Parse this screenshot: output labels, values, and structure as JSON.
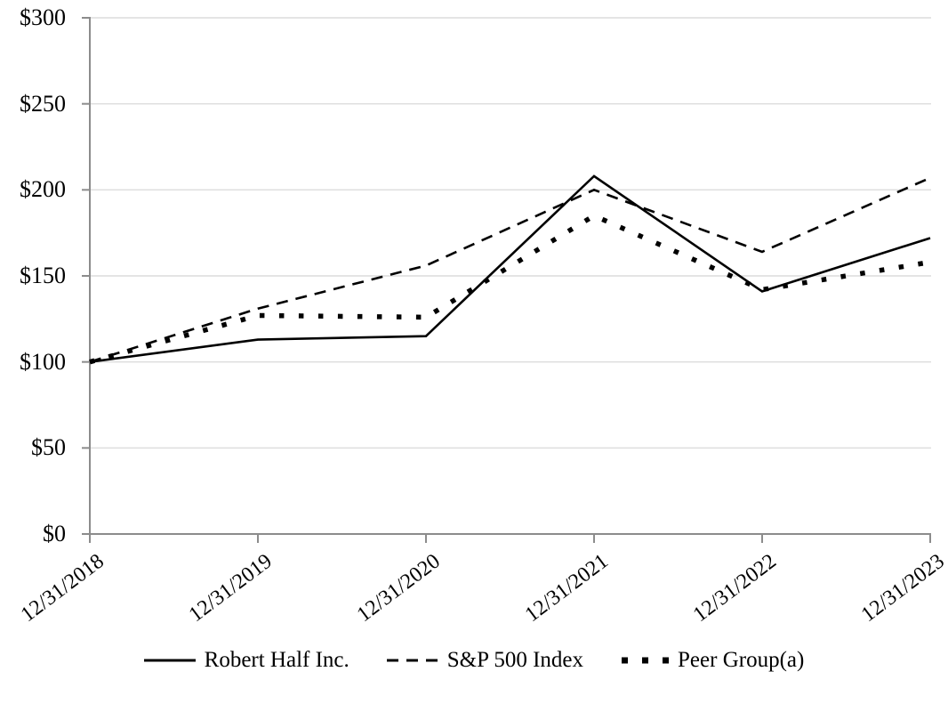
{
  "chart_data": {
    "type": "line",
    "title": "",
    "xlabel": "",
    "ylabel": "",
    "x_labels": [
      "12/31/2018",
      "12/31/2019",
      "12/31/2020",
      "12/31/2021",
      "12/31/2022",
      "12/31/2023"
    ],
    "y_ticks": [
      {
        "label": "$300",
        "value": 300
      },
      {
        "label": "$250",
        "value": 250
      },
      {
        "label": "$200",
        "value": 200
      },
      {
        "label": "$150",
        "value": 150
      },
      {
        "label": "$100",
        "value": 100
      },
      {
        "label": "$50",
        "value": 50
      },
      {
        "label": "$0",
        "value": 0
      }
    ],
    "ylim": [
      0,
      300
    ],
    "grid": true,
    "legend_position": "bottom",
    "series": [
      {
        "name": "Robert Half Inc.",
        "style": "solid",
        "values": [
          100,
          113,
          115,
          208,
          141,
          172
        ]
      },
      {
        "name": "S&P 500 Index",
        "style": "dashed",
        "values": [
          100,
          131,
          156,
          200,
          164,
          207
        ]
      },
      {
        "name": "Peer Group(a)",
        "style": "dotted",
        "values": [
          100,
          127,
          126,
          185,
          142,
          158
        ]
      }
    ],
    "colors": {
      "series": "#000000",
      "grid": "#dcdcdc",
      "axis": "#8c8c8c",
      "text": "#000000"
    }
  }
}
